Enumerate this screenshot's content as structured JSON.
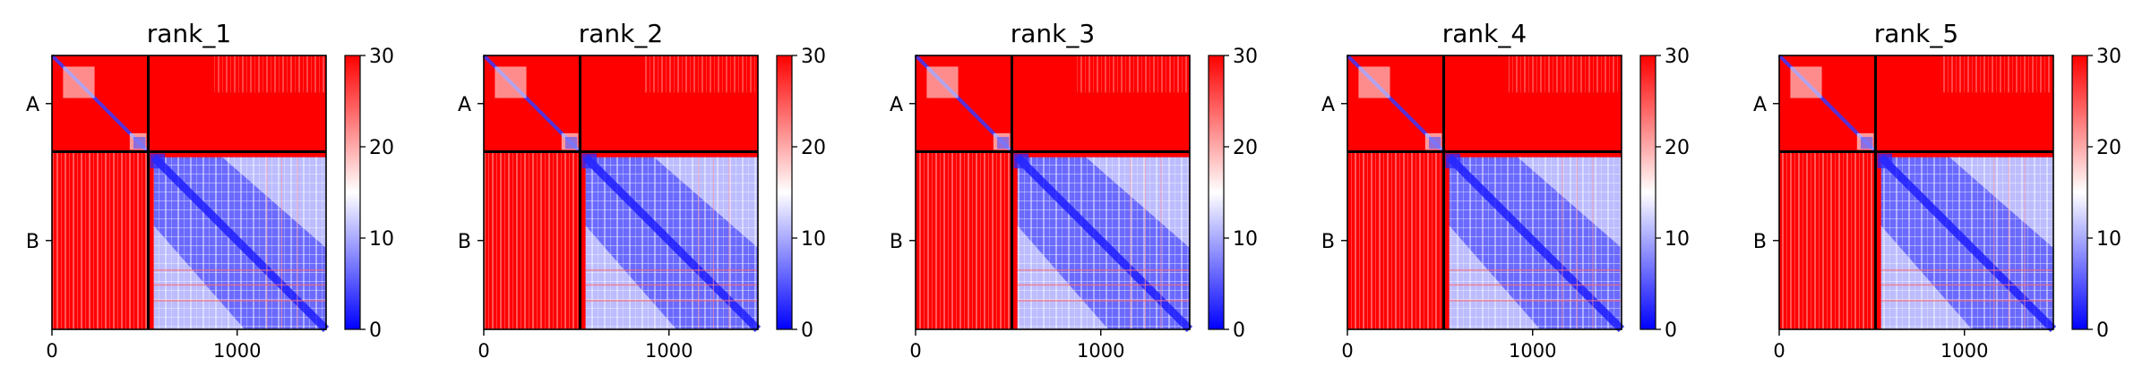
{
  "figure": {
    "background": "#ffffff"
  },
  "colors": {
    "low": "#0000ff",
    "mid": "#ffffff",
    "high": "#ff0000",
    "line": "#000000"
  },
  "chart_data": [
    {
      "type": "heatmap",
      "title": "rank_1",
      "xlim": [
        0,
        1480
      ],
      "x_ticks": [
        0,
        1000
      ],
      "x_tick_labels": [
        "0",
        "1000"
      ],
      "y_tick_labels": [
        "A",
        "B"
      ],
      "chain_lengths": {
        "A": 520,
        "B": 960
      },
      "chain_boundary": 520,
      "colorbar": {
        "min": 0,
        "max": 30,
        "ticks": [
          0,
          10,
          20,
          30
        ],
        "tick_labels": [
          "0",
          "10",
          "20",
          "30"
        ],
        "colormap": "bwr"
      }
    },
    {
      "type": "heatmap",
      "title": "rank_2",
      "xlim": [
        0,
        1480
      ],
      "x_ticks": [
        0,
        1000
      ],
      "x_tick_labels": [
        "0",
        "1000"
      ],
      "y_tick_labels": [
        "A",
        "B"
      ],
      "chain_lengths": {
        "A": 520,
        "B": 960
      },
      "chain_boundary": 520,
      "colorbar": {
        "min": 0,
        "max": 30,
        "ticks": [
          0,
          10,
          20,
          30
        ],
        "tick_labels": [
          "0",
          "10",
          "20",
          "30"
        ],
        "colormap": "bwr"
      }
    },
    {
      "type": "heatmap",
      "title": "rank_3",
      "xlim": [
        0,
        1480
      ],
      "x_ticks": [
        0,
        1000
      ],
      "x_tick_labels": [
        "0",
        "1000"
      ],
      "y_tick_labels": [
        "A",
        "B"
      ],
      "chain_lengths": {
        "A": 520,
        "B": 960
      },
      "chain_boundary": 520,
      "colorbar": {
        "min": 0,
        "max": 30,
        "ticks": [
          0,
          10,
          20,
          30
        ],
        "tick_labels": [
          "0",
          "10",
          "20",
          "30"
        ],
        "colormap": "bwr"
      }
    },
    {
      "type": "heatmap",
      "title": "rank_4",
      "xlim": [
        0,
        1480
      ],
      "x_ticks": [
        0,
        1000
      ],
      "x_tick_labels": [
        "0",
        "1000"
      ],
      "y_tick_labels": [
        "A",
        "B"
      ],
      "chain_lengths": {
        "A": 520,
        "B": 960
      },
      "chain_boundary": 520,
      "colorbar": {
        "min": 0,
        "max": 30,
        "ticks": [
          0,
          10,
          20,
          30
        ],
        "tick_labels": [
          "0",
          "10",
          "20",
          "30"
        ],
        "colormap": "bwr"
      }
    },
    {
      "type": "heatmap",
      "title": "rank_5",
      "xlim": [
        0,
        1480
      ],
      "x_ticks": [
        0,
        1000
      ],
      "x_tick_labels": [
        "0",
        "1000"
      ],
      "y_tick_labels": [
        "A",
        "B"
      ],
      "chain_lengths": {
        "A": 520,
        "B": 960
      },
      "chain_boundary": 520,
      "colorbar": {
        "min": 0,
        "max": 30,
        "ticks": [
          0,
          10,
          20,
          30
        ],
        "tick_labels": [
          "0",
          "10",
          "20",
          "30"
        ],
        "colormap": "bwr"
      }
    }
  ]
}
